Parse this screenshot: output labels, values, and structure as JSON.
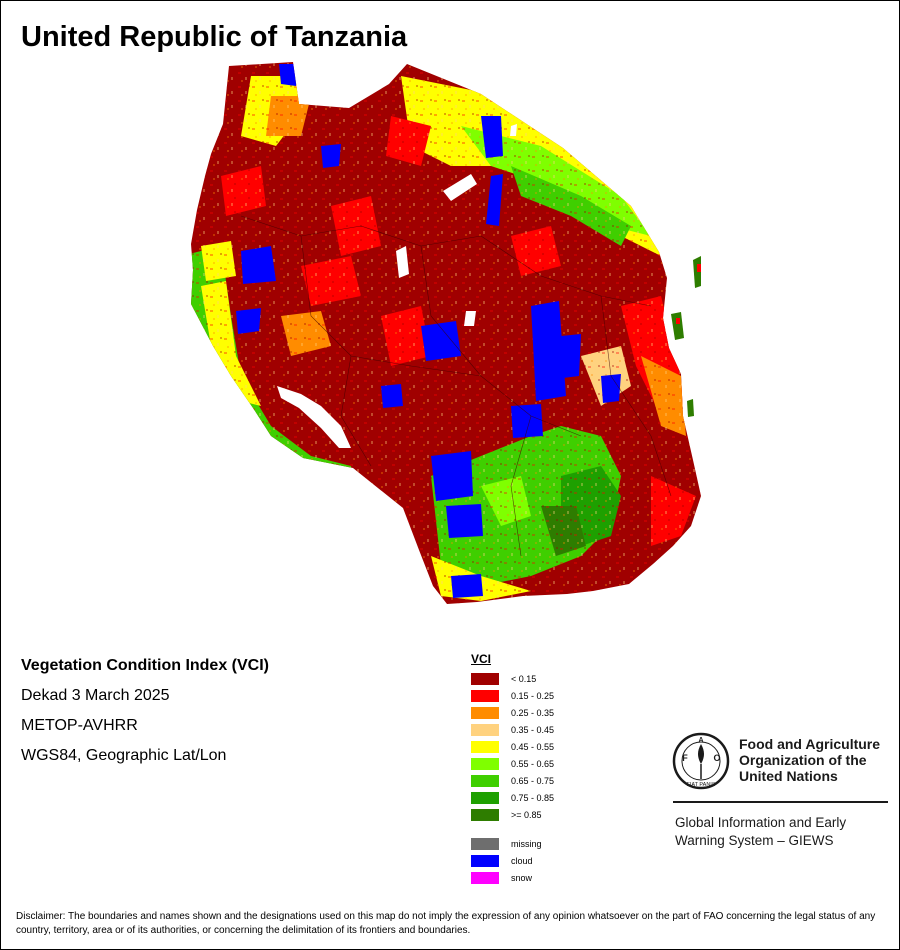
{
  "title": "United Republic of Tanzania",
  "info": {
    "product": "Vegetation Condition Index (VCI)",
    "period": "Dekad 3 March 2025",
    "sensor": "METOP-AVHRR",
    "projection": "WGS84, Geographic Lat/Lon"
  },
  "legend": {
    "title": "VCI",
    "classes": [
      {
        "label": "< 0.15",
        "color": "#a00000"
      },
      {
        "label": "0.15 - 0.25",
        "color": "#ff0000"
      },
      {
        "label": "0.25 - 0.35",
        "color": "#ff8c00"
      },
      {
        "label": "0.35 - 0.45",
        "color": "#ffd27f"
      },
      {
        "label": "0.45 - 0.55",
        "color": "#ffff00"
      },
      {
        "label": "0.55 - 0.65",
        "color": "#7fff00"
      },
      {
        "label": "0.65 - 0.75",
        "color": "#3fcf00"
      },
      {
        "label": "0.75 - 0.85",
        "color": "#1ea000"
      },
      {
        "label": ">= 0.85",
        "color": "#2e7d00"
      }
    ],
    "special": [
      {
        "label": "missing",
        "color": "#6e6e6e"
      },
      {
        "label": "cloud",
        "color": "#0000ff"
      },
      {
        "label": "snow",
        "color": "#ff00ff"
      }
    ]
  },
  "organization": {
    "name_lines": [
      "Food and Agriculture",
      "Organization of the",
      "United Nations"
    ],
    "emblem_text": "FIAT PANIS",
    "emblem_letters": [
      "F",
      "A",
      "O"
    ]
  },
  "system": {
    "lines": [
      "Global Information and Early",
      "Warning System – GIEWS"
    ]
  },
  "disclaimer": "Disclaimer: The boundaries and names shown and the designations used on this map do not imply the expression of any opinion whatsoever on the part of FAO concerning the legal status of any country, territory, area or of its authorities, or concerning the delimitation of its frontiers and boundaries."
}
